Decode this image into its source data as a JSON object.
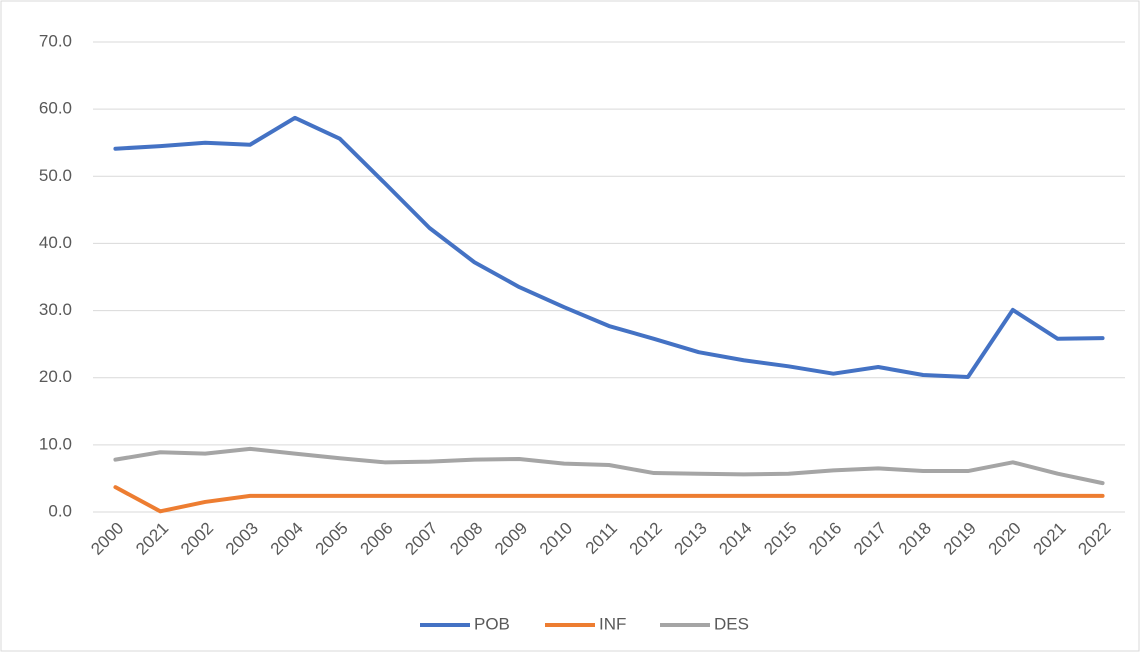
{
  "chart_data": {
    "type": "line",
    "categories": [
      "2000",
      "2021",
      "2002",
      "2003",
      "2004",
      "2005",
      "2006",
      "2007",
      "2008",
      "2009",
      "2010",
      "2011",
      "2012",
      "2013",
      "2014",
      "2015",
      "2016",
      "2017",
      "2018",
      "2019",
      "2020",
      "2021",
      "2022"
    ],
    "series": [
      {
        "name": "POB",
        "color": "#4472c4",
        "values": [
          54.1,
          54.5,
          55.0,
          54.7,
          58.7,
          55.6,
          49.0,
          42.3,
          37.2,
          33.5,
          30.5,
          27.7,
          25.8,
          23.8,
          22.6,
          21.7,
          20.6,
          21.6,
          20.4,
          20.1,
          30.1,
          25.8,
          25.9
        ]
      },
      {
        "name": "INF",
        "color": "#ed7d31",
        "values": [
          3.7,
          0.1,
          1.5,
          2.4,
          2.4,
          2.4,
          2.4,
          2.4,
          2.4,
          2.4,
          2.4,
          2.4,
          2.4,
          2.4,
          2.4,
          2.4,
          2.4,
          2.4,
          2.4,
          2.4,
          2.4,
          2.4,
          2.4
        ]
      },
      {
        "name": "DES",
        "color": "#a5a5a5",
        "values": [
          7.8,
          8.9,
          8.7,
          9.4,
          8.7,
          8.0,
          7.4,
          7.5,
          7.8,
          7.9,
          7.2,
          7.0,
          5.8,
          5.7,
          5.6,
          5.7,
          6.2,
          6.5,
          6.1,
          6.1,
          7.4,
          5.7,
          4.3
        ]
      }
    ],
    "ylim": [
      0,
      70
    ],
    "yticks": [
      {
        "value": 0,
        "label": "0.0"
      },
      {
        "value": 10,
        "label": "10.0"
      },
      {
        "value": 20,
        "label": "20.0"
      },
      {
        "value": 30,
        "label": "30.0"
      },
      {
        "value": 40,
        "label": "40.0"
      },
      {
        "value": 50,
        "label": "50.0"
      },
      {
        "value": 60,
        "label": "60.0"
      },
      {
        "value": 70,
        "label": "70.0"
      }
    ],
    "grid": true,
    "legend": "bottom"
  }
}
